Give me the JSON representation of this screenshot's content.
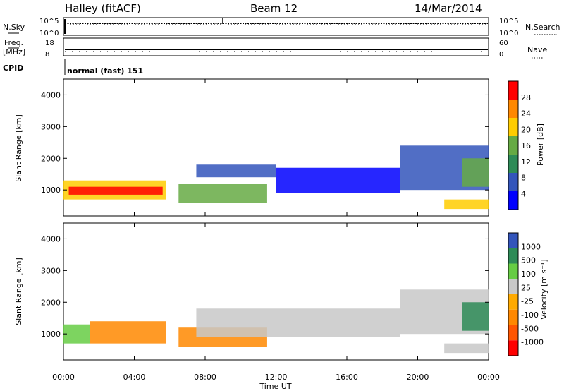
{
  "header": {
    "station": "Halley (fitACF)",
    "beam": "Beam 12",
    "date": "14/Mar/2014"
  },
  "top_panels": {
    "nsky_label": "N.Sky",
    "nsearch_label": "N.Search",
    "nsky_ticks": [
      "10^5",
      "10^0"
    ],
    "nsearch_ticks": [
      "10^5",
      "10^0"
    ],
    "freq_label_1": "Freq.",
    "freq_label_2": "[MHz]",
    "freq_ticks": [
      "18",
      "8"
    ],
    "nave_label": "Nave",
    "nave_ticks": [
      "60",
      "0"
    ],
    "cpid_label": "CPID",
    "cpid_text": "normal (fast) 151"
  },
  "chart_data": [
    {
      "type": "heatmap",
      "name": "power",
      "ylabel": "Slant Range [km]",
      "xlabel": "",
      "ylim": [
        180,
        4500
      ],
      "yticks": [
        "1000",
        "2000",
        "3000",
        "4000"
      ],
      "colorbar_label": "Power [dB]",
      "colorbar_ticks": [
        "28",
        "24",
        "20",
        "16",
        "12",
        "8",
        "4"
      ],
      "colorbar_colors": [
        "#0000ff",
        "#3355bb",
        "#2e8b57",
        "#66aa44",
        "#ffcc00",
        "#ff8800",
        "#ff0000"
      ],
      "regions": [
        {
          "t0": 0.0,
          "t1": 5.8,
          "r0": 700,
          "r1": 1300,
          "value": 20
        },
        {
          "t0": 0.3,
          "t1": 5.6,
          "r0": 850,
          "r1": 1100,
          "value": 26
        },
        {
          "t0": 6.5,
          "t1": 11.5,
          "r0": 600,
          "r1": 1200,
          "value": 14
        },
        {
          "t0": 7.5,
          "t1": 12.0,
          "r0": 1400,
          "r1": 1800,
          "value": 6
        },
        {
          "t0": 12.0,
          "t1": 19.0,
          "r0": 900,
          "r1": 1700,
          "value": 5
        },
        {
          "t0": 19.0,
          "t1": 24.0,
          "r0": 1000,
          "r1": 2400,
          "value": 8
        },
        {
          "t0": 21.5,
          "t1": 24.0,
          "r0": 400,
          "r1": 700,
          "value": 20
        },
        {
          "t0": 22.5,
          "t1": 24.0,
          "r0": 1100,
          "r1": 2000,
          "value": 16
        }
      ]
    },
    {
      "type": "heatmap",
      "name": "velocity",
      "ylabel": "Slant Range [km]",
      "xlabel": "Time UT",
      "ylim": [
        180,
        4500
      ],
      "yticks": [
        "1000",
        "2000",
        "3000",
        "4000"
      ],
      "xticks": [
        "00:00",
        "04:00",
        "08:00",
        "12:00",
        "16:00",
        "20:00",
        "00:00"
      ],
      "colorbar_label": "Velocity  [m s⁻¹]",
      "colorbar_ticks": [
        "1000",
        "500",
        "100",
        "25",
        "-25",
        "-100",
        "-500",
        "-1000"
      ],
      "colorbar_colors": [
        "#ff0000",
        "#ff5500",
        "#ff8800",
        "#ffaa00",
        "#c8c8c8",
        "#66cc44",
        "#2e8b57",
        "#3355bb"
      ],
      "regions": [
        {
          "t0": 0.0,
          "t1": 1.5,
          "r0": 700,
          "r1": 1300,
          "value": 50
        },
        {
          "t0": 1.5,
          "t1": 5.8,
          "r0": 700,
          "r1": 1400,
          "value": -300
        },
        {
          "t0": 6.5,
          "t1": 11.5,
          "r0": 600,
          "r1": 1200,
          "value": -200
        },
        {
          "t0": 7.5,
          "t1": 19.0,
          "r0": 900,
          "r1": 1800,
          "value": 0
        },
        {
          "t0": 19.0,
          "t1": 24.0,
          "r0": 1000,
          "r1": 2400,
          "value": 0
        },
        {
          "t0": 21.5,
          "t1": 24.0,
          "r0": 400,
          "r1": 700,
          "value": 0
        },
        {
          "t0": 22.5,
          "t1": 24.0,
          "r0": 1100,
          "r1": 2000,
          "value": 200
        }
      ]
    }
  ]
}
